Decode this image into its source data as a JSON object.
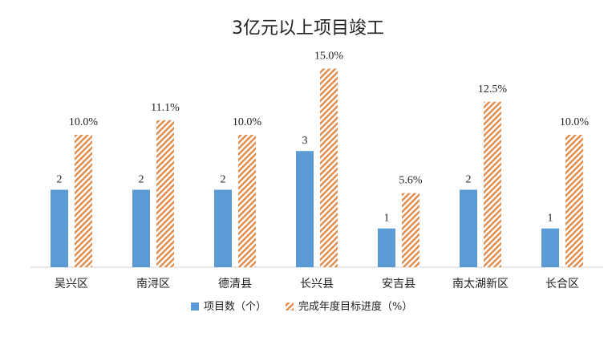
{
  "chart_data": {
    "type": "bar",
    "title": "3亿元以上项目竣工",
    "categories": [
      "吴兴区",
      "南浔区",
      "德清县",
      "长兴县",
      "安吉县",
      "南太湖新区",
      "长合区"
    ],
    "series": [
      {
        "name": "项目数（个）",
        "values": [
          2,
          2,
          2,
          3,
          1,
          2,
          1
        ],
        "labels": [
          "2",
          "2",
          "2",
          "3",
          "1",
          "2",
          "1"
        ],
        "color": "#5b9bd5"
      },
      {
        "name": "完成年度目标进度（%）",
        "values": [
          10.0,
          11.1,
          10.0,
          15.0,
          5.6,
          12.5,
          10.0
        ],
        "labels": [
          "10.0%",
          "11.1%",
          "10.0%",
          "15.0%",
          "5.6%",
          "12.5%",
          "10.0%"
        ],
        "color": "#ed7d31",
        "pattern": "diagonal-hatch"
      }
    ],
    "legend": "bottom",
    "grid": false
  }
}
